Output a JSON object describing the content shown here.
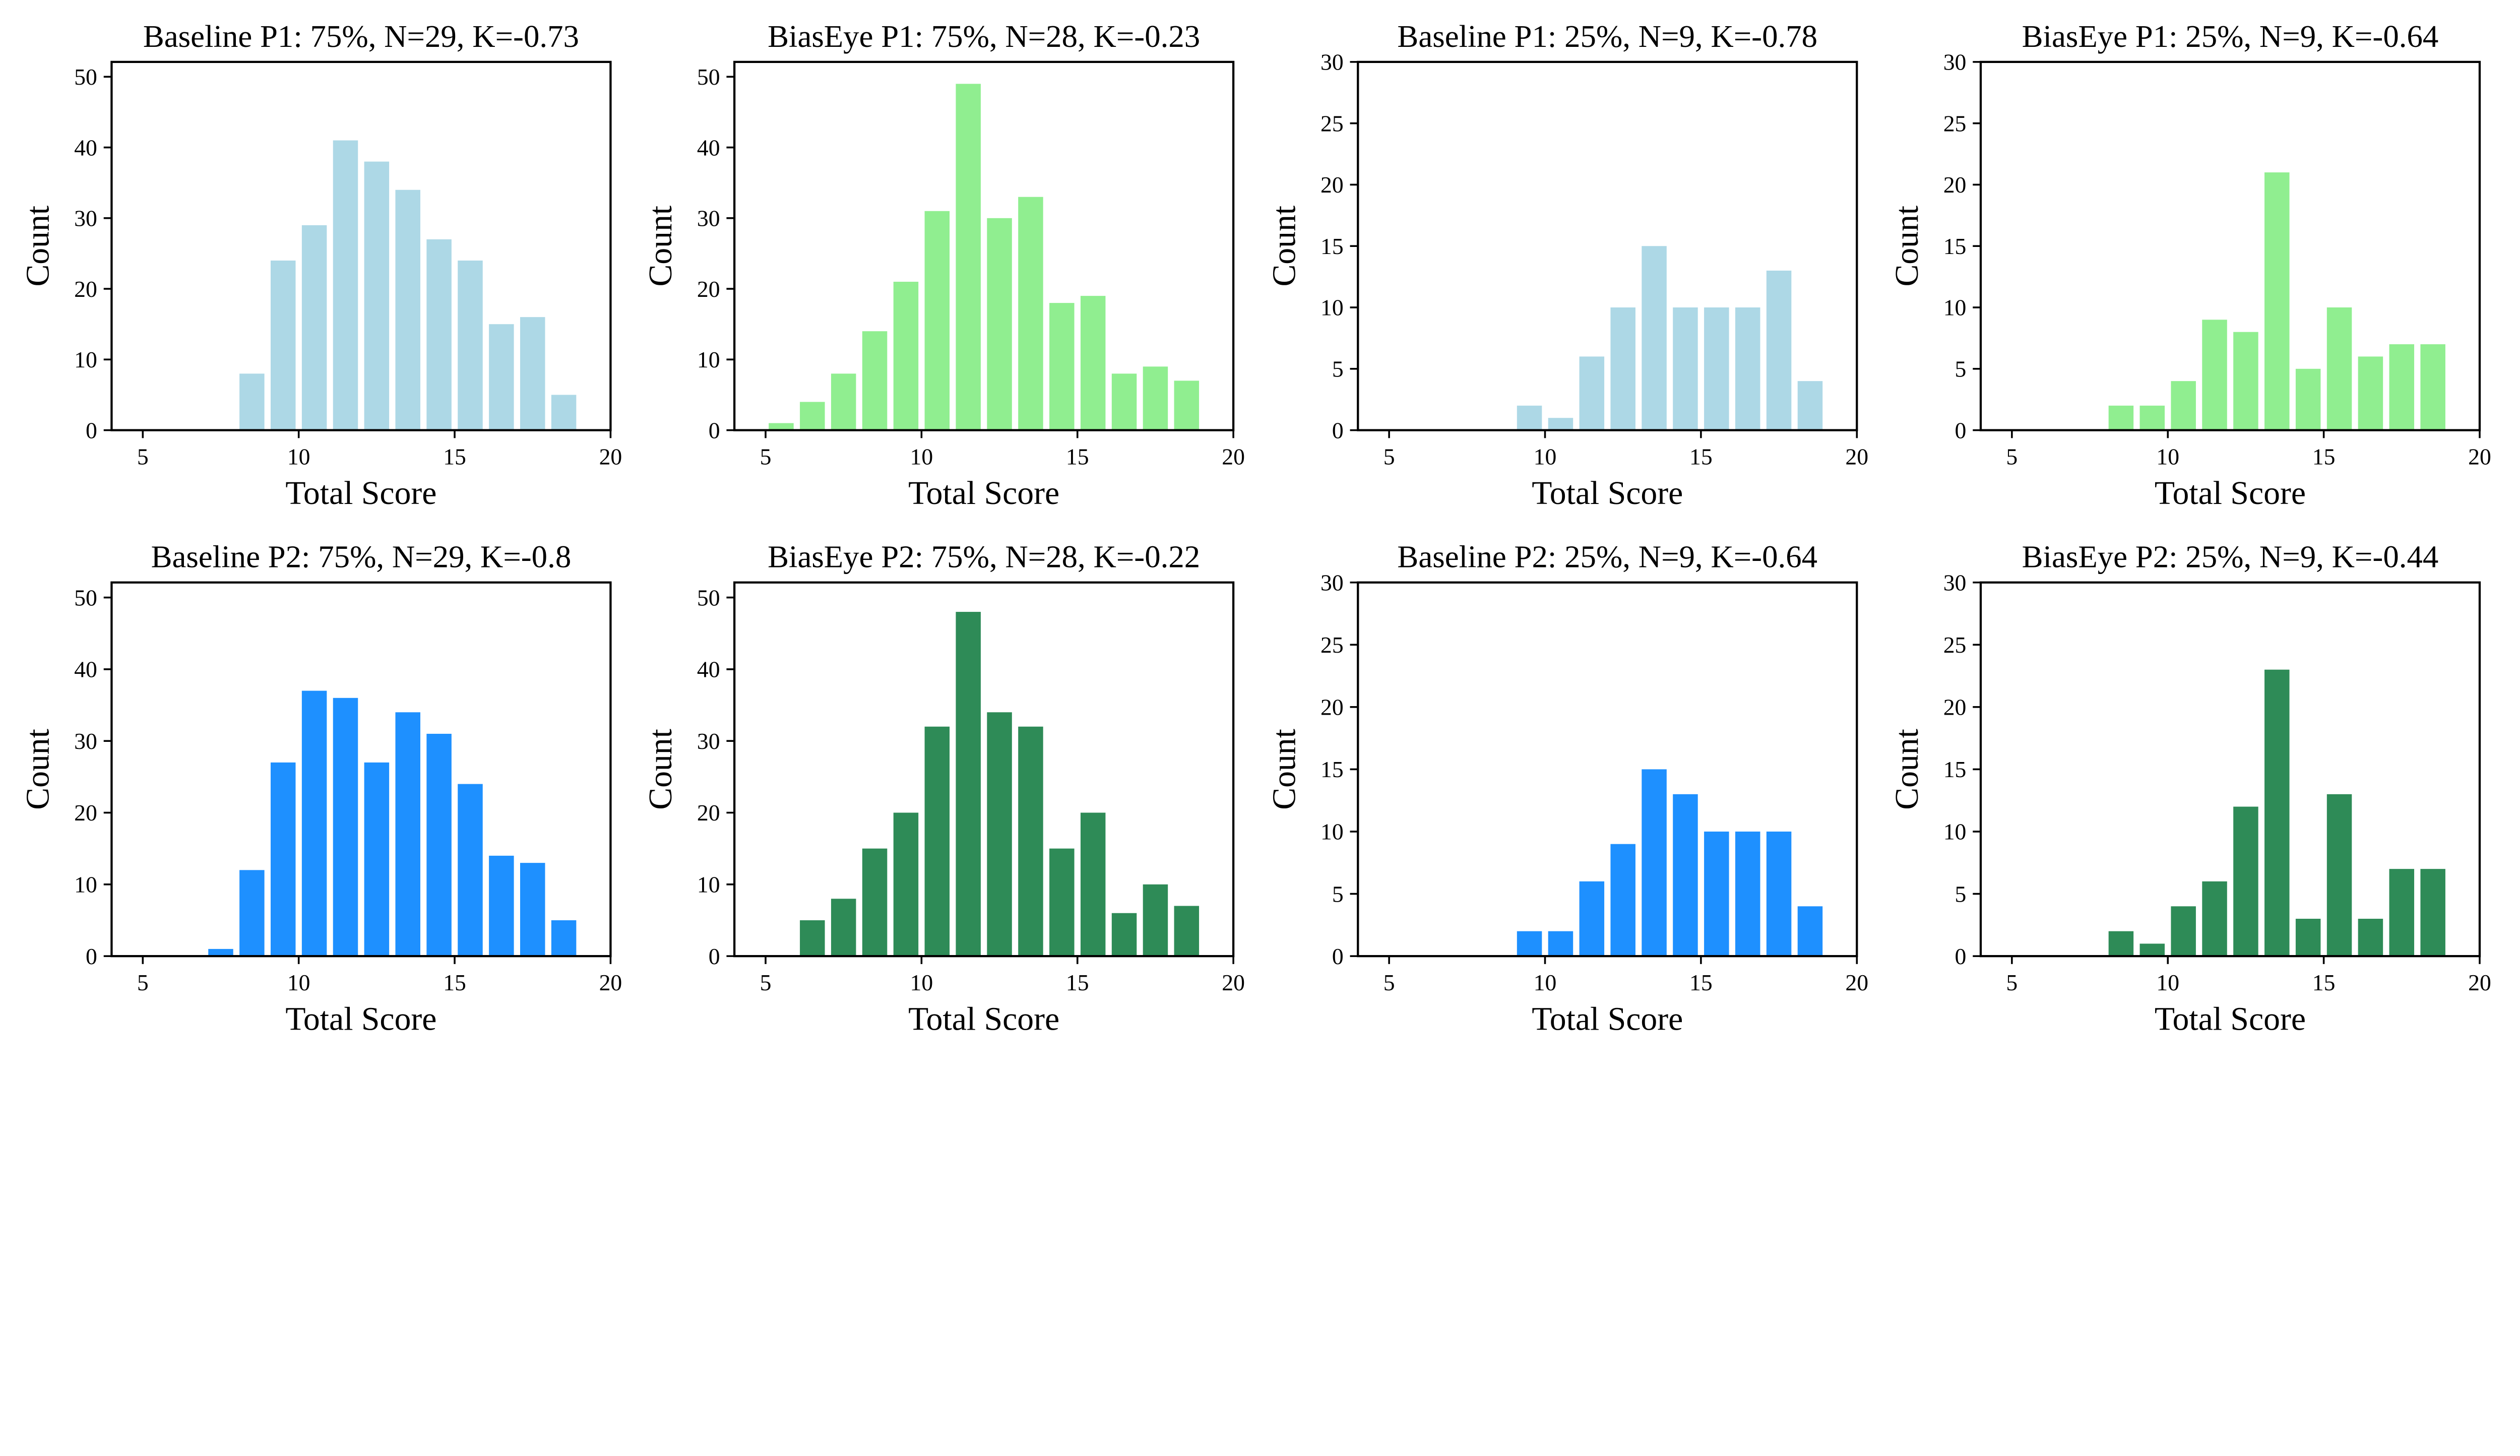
{
  "colors": {
    "baseline_p1": "#ADD8E6",
    "biaseye_p1": "#90EE90",
    "baseline_p2": "#1E90FF",
    "biaseye_p2": "#2E8B57"
  },
  "chart_data": [
    {
      "type": "bar",
      "title": "Baseline P1: 75%, N=29, K=-0.73",
      "xlabel": "Total Score",
      "ylabel": "Count",
      "xlim": [
        4,
        20
      ],
      "ylim": [
        0,
        52.1
      ],
      "xticks": [
        5,
        10,
        15,
        20
      ],
      "yticks": [
        0,
        10,
        20,
        30,
        40,
        50
      ],
      "grid": false,
      "color": "#ADD8E6",
      "x": [
        8.5,
        9.5,
        10.5,
        11.5,
        12.5,
        13.5,
        14.5,
        15.5,
        16.5,
        17.5,
        18.5
      ],
      "values": [
        8,
        24,
        29,
        41,
        38,
        34,
        27,
        24,
        15,
        16,
        5
      ]
    },
    {
      "type": "bar",
      "title": "BiasEye P1: 75%, N=28, K=-0.23",
      "xlabel": "Total Score",
      "ylabel": "Count",
      "xlim": [
        4,
        20
      ],
      "ylim": [
        0,
        52.1
      ],
      "xticks": [
        5,
        10,
        15,
        20
      ],
      "yticks": [
        0,
        10,
        20,
        30,
        40,
        50
      ],
      "grid": false,
      "color": "#90EE90",
      "x": [
        5.5,
        6.5,
        7.5,
        8.5,
        9.5,
        10.5,
        11.5,
        12.5,
        13.5,
        14.5,
        15.5,
        16.5,
        17.5,
        18.5
      ],
      "values": [
        1,
        4,
        8,
        14,
        21,
        31,
        49,
        30,
        33,
        18,
        19,
        8,
        9,
        7
      ]
    },
    {
      "type": "bar",
      "title": "Baseline P1: 25%, N=9, K=-0.78",
      "xlabel": "Total Score",
      "ylabel": "Count",
      "xlim": [
        4,
        20
      ],
      "ylim": [
        0,
        30
      ],
      "xticks": [
        5,
        10,
        15,
        20
      ],
      "yticks": [
        0,
        5,
        10,
        15,
        20,
        25,
        30
      ],
      "grid": false,
      "color": "#ADD8E6",
      "x": [
        9.5,
        10.5,
        11.5,
        12.5,
        13.5,
        14.5,
        15.5,
        16.5,
        17.5,
        18.5
      ],
      "values": [
        2,
        1,
        6,
        10,
        15,
        10,
        10,
        10,
        13,
        4
      ]
    },
    {
      "type": "bar",
      "title": "BiasEye P1: 25%, N=9, K=-0.64",
      "xlabel": "Total Score",
      "ylabel": "Count",
      "xlim": [
        4,
        20
      ],
      "ylim": [
        0,
        30
      ],
      "xticks": [
        5,
        10,
        15,
        20
      ],
      "yticks": [
        0,
        5,
        10,
        15,
        20,
        25,
        30
      ],
      "grid": false,
      "color": "#90EE90",
      "x": [
        8.5,
        9.5,
        10.5,
        11.5,
        12.5,
        13.5,
        14.5,
        15.5,
        16.5,
        17.5,
        18.5
      ],
      "values": [
        2,
        2,
        4,
        9,
        8,
        21,
        5,
        10,
        6,
        7,
        7
      ]
    },
    {
      "type": "bar",
      "title": "Baseline P2: 75%, N=29, K=-0.8",
      "xlabel": "Total Score",
      "ylabel": "Count",
      "xlim": [
        4,
        20
      ],
      "ylim": [
        0,
        52.1
      ],
      "xticks": [
        5,
        10,
        15,
        20
      ],
      "yticks": [
        0,
        10,
        20,
        30,
        40,
        50
      ],
      "grid": false,
      "color": "#1E90FF",
      "x": [
        7.5,
        8.5,
        9.5,
        10.5,
        11.5,
        12.5,
        13.5,
        14.5,
        15.5,
        16.5,
        17.5,
        18.5
      ],
      "values": [
        1,
        12,
        27,
        37,
        36,
        27,
        34,
        31,
        24,
        14,
        13,
        5
      ]
    },
    {
      "type": "bar",
      "title": "BiasEye P2: 75%, N=28, K=-0.22",
      "xlabel": "Total Score",
      "ylabel": "Count",
      "xlim": [
        4,
        20
      ],
      "ylim": [
        0,
        52.1
      ],
      "xticks": [
        5,
        10,
        15,
        20
      ],
      "yticks": [
        0,
        10,
        20,
        30,
        40,
        50
      ],
      "grid": false,
      "color": "#2E8B57",
      "x": [
        6.5,
        7.5,
        8.5,
        9.5,
        10.5,
        11.5,
        12.5,
        13.5,
        14.5,
        15.5,
        16.5,
        17.5,
        18.5
      ],
      "values": [
        5,
        8,
        15,
        20,
        32,
        48,
        34,
        32,
        15,
        20,
        6,
        10,
        7
      ]
    },
    {
      "type": "bar",
      "title": "Baseline P2: 25%, N=9, K=-0.64",
      "xlabel": "Total Score",
      "ylabel": "Count",
      "xlim": [
        4,
        20
      ],
      "ylim": [
        0,
        30
      ],
      "xticks": [
        5,
        10,
        15,
        20
      ],
      "yticks": [
        0,
        5,
        10,
        15,
        20,
        25,
        30
      ],
      "grid": false,
      "color": "#1E90FF",
      "x": [
        9.5,
        10.5,
        11.5,
        12.5,
        13.5,
        14.5,
        15.5,
        16.5,
        17.5,
        18.5
      ],
      "values": [
        2,
        2,
        6,
        9,
        15,
        13,
        10,
        10,
        10,
        4
      ]
    },
    {
      "type": "bar",
      "title": "BiasEye P2: 25%, N=9, K=-0.44",
      "xlabel": "Total Score",
      "ylabel": "Count",
      "xlim": [
        4,
        20
      ],
      "ylim": [
        0,
        30
      ],
      "xticks": [
        5,
        10,
        15,
        20
      ],
      "yticks": [
        0,
        5,
        10,
        15,
        20,
        25,
        30
      ],
      "grid": false,
      "color": "#2E8B57",
      "x": [
        8.5,
        9.5,
        10.5,
        11.5,
        12.5,
        13.5,
        14.5,
        15.5,
        16.5,
        17.5,
        18.5
      ],
      "values": [
        2,
        1,
        4,
        6,
        12,
        23,
        3,
        13,
        3,
        7,
        7
      ]
    }
  ]
}
